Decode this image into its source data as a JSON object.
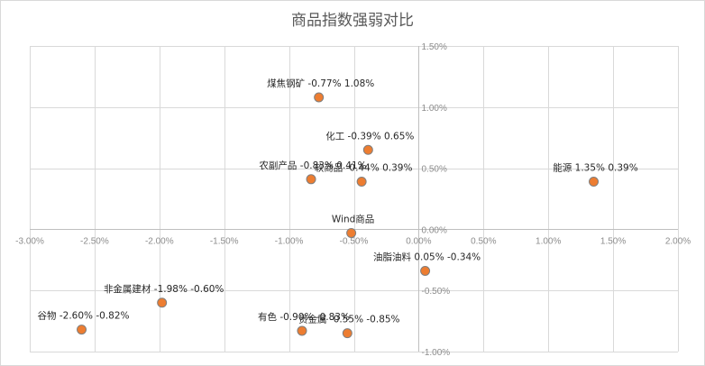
{
  "chart_data": {
    "type": "scatter",
    "title": "商品指数强弱对比",
    "xlabel": "",
    "ylabel": "",
    "xlim": [
      -0.03,
      0.02
    ],
    "ylim": [
      -0.01,
      0.015
    ],
    "x_ticks": [
      "-3.00%",
      "-2.50%",
      "-2.00%",
      "-1.50%",
      "-1.00%",
      "-0.50%",
      "0.00%",
      "0.50%",
      "1.00%",
      "1.50%",
      "2.00%"
    ],
    "y_ticks": [
      "1.50%",
      "1.00%",
      "0.50%",
      "0.00%",
      "-0.50%",
      "-1.00%"
    ],
    "grid": true,
    "legend": "none",
    "marker_color": "#ed7d31",
    "points": [
      {
        "label": "煤焦钢矿 -0.77% 1.08%",
        "x": -0.0077,
        "y": 0.0108
      },
      {
        "label": "化工 -0.39% 0.65%",
        "x": -0.0039,
        "y": 0.0065
      },
      {
        "label": "农副产品 -0.83% 0.41%",
        "x": -0.0083,
        "y": 0.0041
      },
      {
        "label": "软商品 -0.44% 0.39%",
        "x": -0.0044,
        "y": 0.0039
      },
      {
        "label": "能源 1.35% 0.39%",
        "x": 0.0135,
        "y": 0.0039
      },
      {
        "label": "Wind商品",
        "x": -0.0052,
        "y": -0.0003
      },
      {
        "label": "油脂油料 0.05% -0.34%",
        "x": 0.0005,
        "y": -0.0034
      },
      {
        "label": "非金属建材 -1.98% -0.60%",
        "x": -0.0198,
        "y": -0.006
      },
      {
        "label": "谷物 -2.60% -0.82%",
        "x": -0.026,
        "y": -0.0082
      },
      {
        "label": "有色 -0.90% -0.83%",
        "x": -0.009,
        "y": -0.0083
      },
      {
        "label": "贵金属 -0.55% -0.85%",
        "x": -0.0055,
        "y": -0.0085
      }
    ]
  }
}
